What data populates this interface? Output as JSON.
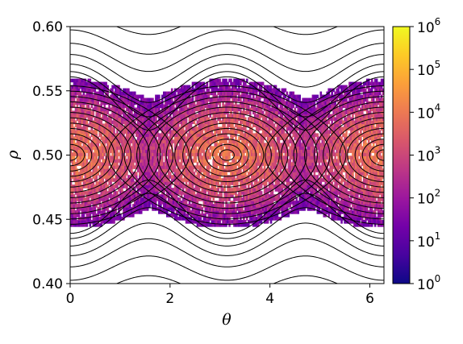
{
  "chart_data": {
    "type": "heatmap",
    "title": "",
    "xlabel": "θ",
    "ylabel": "ρ",
    "xlim": [
      0,
      6.283
    ],
    "ylim": [
      0.4,
      0.6
    ],
    "x_ticks": [
      0,
      2,
      4,
      6
    ],
    "x_tick_labels": [
      "0",
      "2",
      "4",
      "6"
    ],
    "y_ticks": [
      0.4,
      0.45,
      0.5,
      0.55,
      0.6
    ],
    "y_tick_labels": [
      "0.40",
      "0.45",
      "0.50",
      "0.55",
      "0.60"
    ],
    "grid": false,
    "colorbar": {
      "scale": "log",
      "colormap": "plasma",
      "min": 1,
      "max": 1000000,
      "ticks": [
        1,
        10,
        100,
        1000,
        10000,
        100000,
        1000000
      ],
      "tick_labels": [
        {
          "base": "10",
          "exp": "0"
        },
        {
          "base": "10",
          "exp": "1"
        },
        {
          "base": "10",
          "exp": "2"
        },
        {
          "base": "10",
          "exp": "3"
        },
        {
          "base": "10",
          "exp": "4"
        },
        {
          "base": "10",
          "exp": "5"
        },
        {
          "base": "10",
          "exp": "6"
        }
      ]
    },
    "islands": [
      {
        "theta_center": 0.0,
        "rho_center": 0.5,
        "rho_halfwidth": 0.058
      },
      {
        "theta_center": 3.1416,
        "rho_center": 0.5,
        "rho_halfwidth": 0.058
      },
      {
        "theta_center": 6.2832,
        "rho_center": 0.5,
        "rho_halfwidth": 0.058
      }
    ],
    "x_points": [
      1.5708,
      4.7124
    ],
    "contour_overlay": "phase-space level curves (black lines)"
  },
  "colors": {
    "plasma_stops": [
      "#0d0887",
      "#47039f",
      "#7301a8",
      "#9c179e",
      "#bd3786",
      "#d8576b",
      "#ed7953",
      "#fb9f3a",
      "#fdca26",
      "#f0f921"
    ],
    "contour": "#000000",
    "axes": "#000000",
    "background": "#ffffff"
  }
}
